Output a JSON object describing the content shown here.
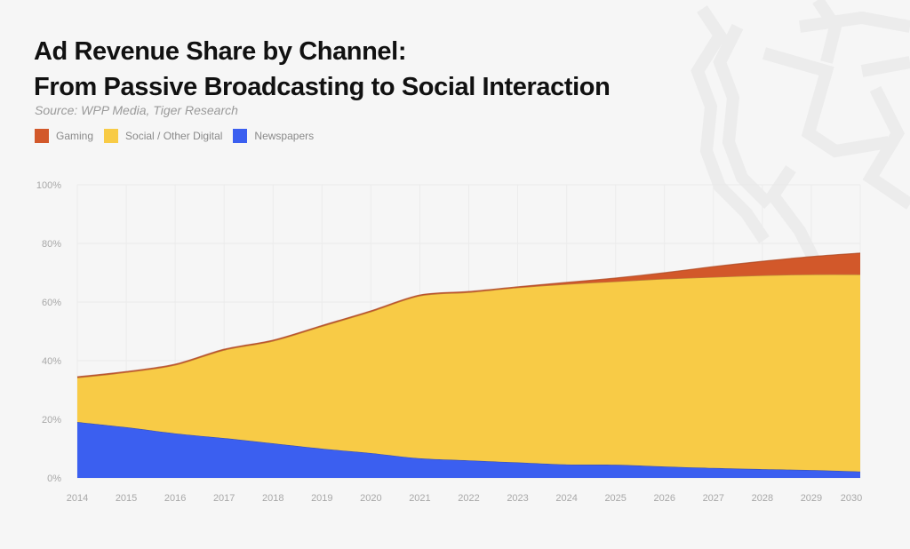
{
  "title_line1": "Ad Revenue Share by Channel:",
  "title_line2": "From Passive Broadcasting to Social Interaction",
  "source": "Source: WPP Media, Tiger Research",
  "chart_data": {
    "type": "area",
    "stacked": true,
    "title": "Ad Revenue Share by Channel: From Passive Broadcasting to Social Interaction",
    "subtitle": "Source: WPP Media, Tiger Research",
    "xlabel": "",
    "ylabel": "",
    "x": [
      "2014",
      "2015",
      "2016",
      "2017",
      "2018",
      "2019",
      "2020",
      "2021",
      "2022",
      "2023",
      "2024",
      "2025",
      "2026",
      "2027",
      "2028",
      "2029",
      "2030"
    ],
    "ylim": [
      0,
      100
    ],
    "y_ticks": [
      "0%",
      "20%",
      "40%",
      "60%",
      "80%",
      "100%"
    ],
    "y_tick_values": [
      0,
      20,
      40,
      60,
      80,
      100
    ],
    "grid": true,
    "legend_position": "top-left",
    "series": [
      {
        "name": "Newspapers",
        "color": "#3b5ff0",
        "values": [
          19.1,
          17.3,
          15.2,
          13.6,
          11.8,
          10.0,
          8.5,
          6.7,
          6.0,
          5.3,
          4.6,
          4.5,
          3.9,
          3.4,
          3.0,
          2.7,
          2.2
        ]
      },
      {
        "name": "Social / Other Digital",
        "color": "#f8cb46",
        "values": [
          15.1,
          18.7,
          23.3,
          30.0,
          34.9,
          41.7,
          48.2,
          55.4,
          57.3,
          59.6,
          61.5,
          62.5,
          64.0,
          65.1,
          66.1,
          66.7,
          67.2
        ]
      },
      {
        "name": "Gaming",
        "color": "#d2582a",
        "values": [
          0.3,
          0.3,
          0.3,
          0.3,
          0.3,
          0.3,
          0.3,
          0.3,
          0.3,
          0.3,
          0.6,
          1.2,
          2.1,
          3.6,
          4.8,
          6.1,
          7.3
        ]
      }
    ],
    "legend": [
      "Gaming",
      "Social / Other Digital",
      "Newspapers"
    ]
  }
}
